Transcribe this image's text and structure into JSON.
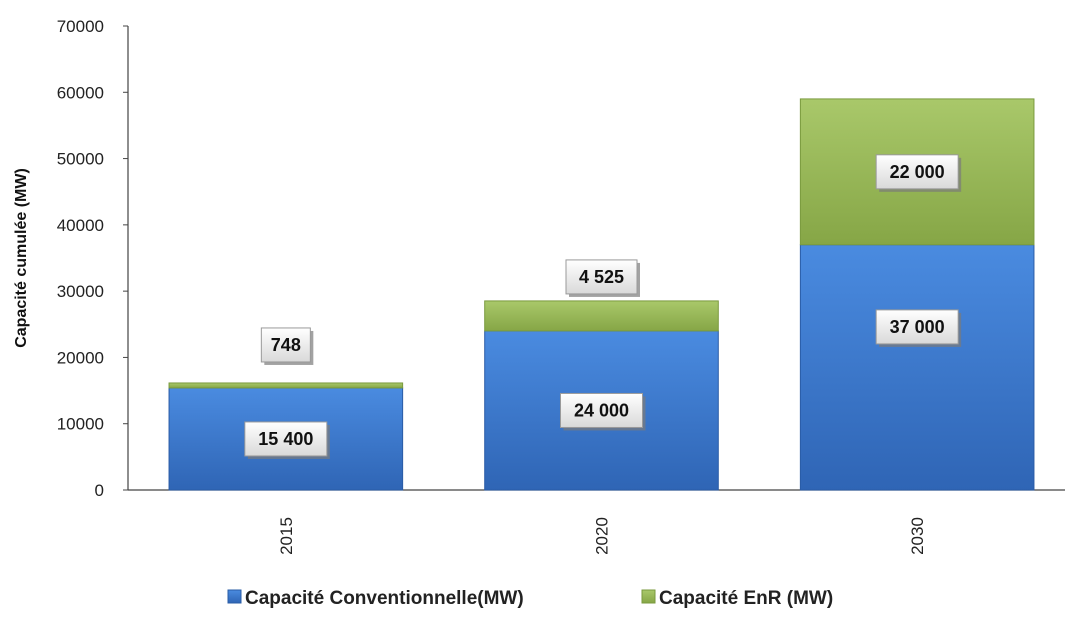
{
  "chart_data": {
    "type": "bar",
    "stacked": true,
    "categories": [
      "2015",
      "2020",
      "2030"
    ],
    "series": [
      {
        "name": "Capacité Conventionnelle(MW)",
        "values": [
          15400,
          24000,
          37000
        ],
        "labels": [
          "15 400",
          "24 000",
          "37 000"
        ],
        "color": "#3F7FD6"
      },
      {
        "name": "Capacité EnR (MW)",
        "values": [
          748,
          4525,
          22000
        ],
        "labels": [
          "748",
          "4 525",
          "22 000"
        ],
        "color": "#9BBB59"
      }
    ],
    "ylabel": "Capacité cumulée (MW)",
    "ylim": [
      0,
      70000
    ],
    "yticks": [
      "0",
      "10000",
      "20000",
      "30000",
      "40000",
      "50000",
      "60000",
      "70000"
    ],
    "grid": false,
    "legend": "bottom"
  }
}
